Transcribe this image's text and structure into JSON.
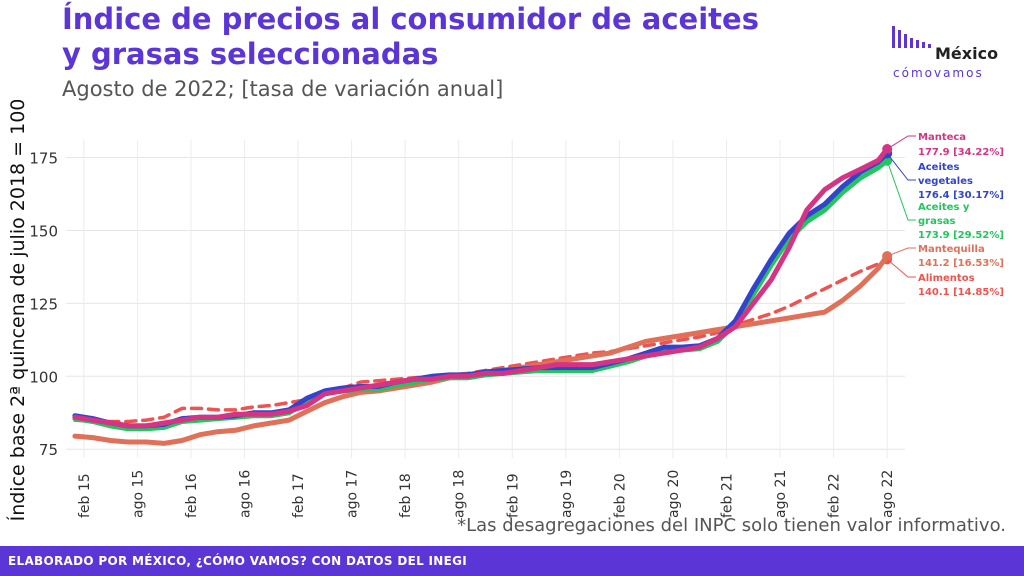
{
  "header": {
    "title_line1": "Índice de precios al consumidor de aceites",
    "title_line2": "y grasas seleccionadas",
    "subtitle": "Agosto de 2022; [tasa de variación anual]"
  },
  "logo": {
    "line1": "México",
    "line2": "cómovamos"
  },
  "footnote": "*Las desagregaciones del INPC solo tienen valor informativo.",
  "footer": "ELABORADO POR MÉXICO, ¿CÓMO VAMOS? CON DATOS DEL INEGI",
  "chart_data": {
    "type": "line",
    "ylabel": "Índice base 2ª quincena de julio 2018 = 100",
    "xlabel": "",
    "ylim": [
      72,
      181
    ],
    "y_ticks": [
      75,
      100,
      125,
      150,
      175
    ],
    "x_ticks": [
      "feb 15",
      "ago 15",
      "feb 16",
      "ago 16",
      "feb 17",
      "ago 17",
      "feb 18",
      "ago 18",
      "feb 19",
      "ago 19",
      "feb 20",
      "ago 20",
      "feb 21",
      "ago 21",
      "feb 22",
      "ago 22"
    ],
    "x": [
      "2015-01",
      "2015-03",
      "2015-05",
      "2015-07",
      "2015-09",
      "2015-11",
      "2016-01",
      "2016-03",
      "2016-05",
      "2016-07",
      "2016-09",
      "2016-11",
      "2017-01",
      "2017-03",
      "2017-05",
      "2017-07",
      "2017-09",
      "2017-11",
      "2018-01",
      "2018-03",
      "2018-05",
      "2018-07",
      "2018-09",
      "2018-11",
      "2019-01",
      "2019-03",
      "2019-05",
      "2019-07",
      "2019-09",
      "2019-11",
      "2020-01",
      "2020-03",
      "2020-05",
      "2020-07",
      "2020-09",
      "2020-11",
      "2021-01",
      "2021-03",
      "2021-05",
      "2021-07",
      "2021-09",
      "2021-11",
      "2022-01",
      "2022-03",
      "2022-05",
      "2022-07",
      "2022-08"
    ],
    "grid": true,
    "series": [
      {
        "name": "Manteca",
        "color": "#d63384",
        "dashed": false,
        "last_label": "177.9 [34.22%]",
        "values": [
          86,
          85,
          84,
          83,
          83,
          84,
          85,
          86,
          86,
          87,
          87,
          87,
          88,
          90,
          94,
          95,
          96,
          97,
          98,
          99,
          99,
          100,
          100,
          101,
          101,
          102,
          103,
          104,
          104,
          104,
          105,
          106,
          107,
          108,
          109,
          110,
          113,
          117,
          125,
          133,
          144,
          157,
          164,
          168,
          171,
          174,
          177.9
        ]
      },
      {
        "name": "Aceites vegetales",
        "color": "#3344cc",
        "dashed": false,
        "last_label": "176.4 [30.17%]",
        "values": [
          86.5,
          85.5,
          84,
          83,
          83,
          83.5,
          85.5,
          86,
          86,
          86.5,
          87.5,
          87.5,
          88.5,
          92.5,
          95,
          96,
          96.5,
          96.5,
          98,
          99,
          100,
          100.5,
          100.5,
          101.5,
          102,
          102.5,
          103,
          103,
          103,
          103,
          104.5,
          106,
          108,
          110,
          110,
          110.5,
          113,
          119,
          130,
          140,
          149,
          155,
          159,
          165,
          170,
          173.5,
          176.4
        ]
      },
      {
        "name": "Aceites y grasas",
        "color": "#22c55e",
        "dashed": false,
        "last_label": "173.9 [29.52%]",
        "values": [
          85.5,
          84.5,
          83,
          82,
          82,
          82.5,
          84.5,
          85,
          85.5,
          86,
          86.5,
          86.5,
          87.5,
          91.5,
          94,
          95,
          95.5,
          95.5,
          97,
          98,
          99,
          99.5,
          99.5,
          100.5,
          101,
          101.5,
          102,
          102,
          102,
          102,
          103.5,
          105,
          107,
          109,
          109,
          109.5,
          112,
          118,
          128,
          138,
          147,
          153,
          157,
          163,
          168,
          171.5,
          173.9
        ]
      },
      {
        "name": "Mantequilla",
        "color": "#e07058",
        "dashed": false,
        "last_label": "141.2 [16.53%]",
        "values": [
          79.5,
          79,
          78,
          77.5,
          77.5,
          77,
          78,
          80,
          81,
          81.5,
          83,
          84,
          85,
          88,
          91,
          93,
          94.5,
          95,
          96,
          97,
          98,
          99.5,
          100,
          101,
          102,
          103,
          104,
          105,
          106,
          107,
          108,
          110,
          112,
          113,
          114,
          115,
          116,
          117,
          118,
          119,
          120,
          121,
          122,
          126,
          131,
          137,
          141.2
        ]
      },
      {
        "name": "Alimentos",
        "color": "#ef5350",
        "dashed": true,
        "last_label": "140.1 [14.85%]",
        "values": [
          85,
          84.5,
          84.5,
          84.5,
          85,
          86,
          89,
          89,
          88.5,
          88.5,
          89.5,
          90,
          91,
          92,
          94,
          96,
          98,
          98.5,
          99,
          99.5,
          100,
          100.5,
          101,
          102,
          103,
          104,
          105,
          106,
          107,
          108,
          108.5,
          109.5,
          110.5,
          111.5,
          112.5,
          113.5,
          115,
          117.5,
          119.5,
          121.5,
          124,
          127,
          130,
          133,
          136,
          138.5,
          140.1
        ]
      }
    ]
  }
}
